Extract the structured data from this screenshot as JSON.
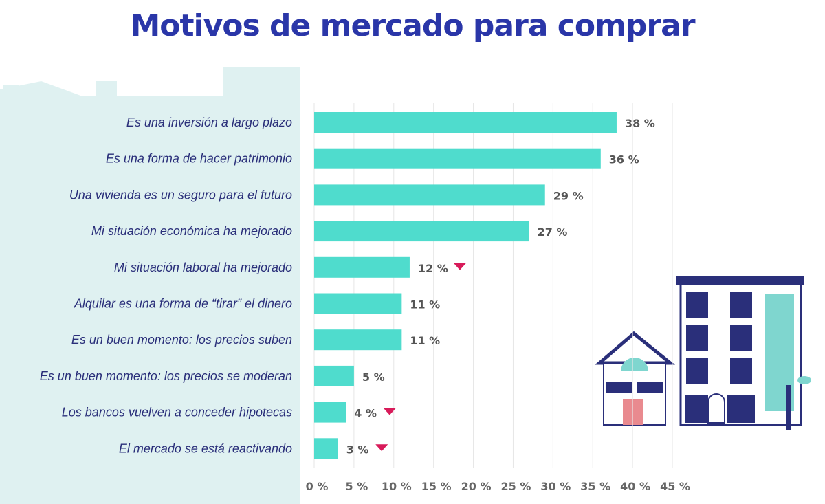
{
  "chart_data": {
    "type": "bar",
    "orientation": "horizontal",
    "title": "Motivos de mercado para comprar",
    "categories": [
      "Es una inversión a largo plazo",
      "Es una forma de hacer patrimonio",
      "Una vivienda es un seguro para el futuro",
      "Mi situación económica ha mejorado",
      "Mi situación laboral ha mejorado",
      "Alquilar es una forma de “tirar” el dinero",
      "Es un buen momento: los precios suben",
      "Es un buen momento: los precios se moderan",
      "Los bancos vuelven a conceder hipotecas",
      "El mercado se está reactivando"
    ],
    "values": [
      38,
      36,
      29,
      27,
      12,
      11,
      11,
      5,
      4,
      3
    ],
    "value_labels": [
      "38 %",
      "36 %",
      "29 %",
      "27 %",
      "12 %",
      "11 %",
      "11 %",
      "5 %",
      "4 %",
      "3 %"
    ],
    "decrease_marker": [
      false,
      false,
      false,
      false,
      true,
      false,
      false,
      false,
      true,
      true
    ],
    "xlim": [
      0,
      45
    ],
    "xticks": [
      0,
      5,
      10,
      15,
      20,
      25,
      30,
      35,
      40,
      45
    ],
    "xtick_labels": [
      "0 %",
      "5 %",
      "10 %",
      "15 %",
      "20 %",
      "25 %",
      "30 %",
      "35 %",
      "40 %",
      "45 %"
    ],
    "grid": "vertical",
    "xlabel": "",
    "ylabel": ""
  },
  "colors": {
    "bar": "#4fdccd",
    "title": "#2a36a8",
    "category_text": "#2a2f7a",
    "marker": "#d81b5a",
    "panel": "#dff1f1"
  }
}
